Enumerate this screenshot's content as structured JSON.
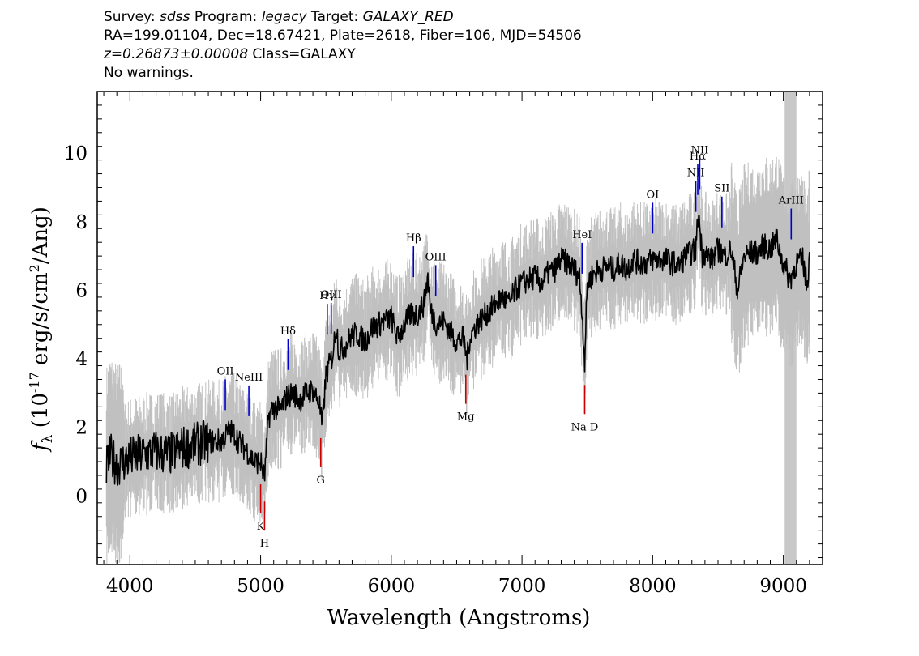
{
  "header": {
    "survey_label": "Survey:",
    "survey_value": "sdss",
    "program_label": "Program:",
    "program_value": "legacy",
    "target_label": "Target:",
    "target_value": "GALAXY_RED",
    "line2": "RA=199.01104, Dec=18.67421, Plate=2618, Fiber=106, MJD=54506",
    "redshift": "z=0.26873±0.00008",
    "class_text": "Class=GALAXY",
    "line4": "No warnings."
  },
  "chart_data": {
    "type": "line",
    "title": "",
    "xlabel": "Wavelength (Angstroms)",
    "ylabel": "f_λ (10^-17 erg/s/cm^2/Ang)",
    "xlim": [
      3750,
      9300
    ],
    "ylim": [
      -2,
      11.8
    ],
    "xticks": [
      4000,
      5000,
      6000,
      7000,
      8000,
      9000
    ],
    "yticks": [
      0,
      2,
      4,
      6,
      8,
      10
    ],
    "masked_band": [
      9010,
      9100
    ],
    "series": [
      {
        "color": "#000000",
        "x": [
          3820,
          3850,
          3900,
          3950,
          4000,
          4100,
          4200,
          4300,
          4400,
          4500,
          4600,
          4700,
          4760,
          4800,
          4850,
          4900,
          4950,
          5000,
          5030,
          5060,
          5100,
          5150,
          5200,
          5250,
          5300,
          5350,
          5400,
          5450,
          5470,
          5500,
          5550,
          5580,
          5600,
          5650,
          5700,
          5750,
          5800,
          5850,
          5900,
          5950,
          6000,
          6050,
          6100,
          6150,
          6200,
          6250,
          6280,
          6300,
          6350,
          6400,
          6450,
          6500,
          6550,
          6580,
          6600,
          6650,
          6700,
          6750,
          6800,
          6850,
          6900,
          6950,
          7000,
          7050,
          7100,
          7150,
          7200,
          7250,
          7300,
          7350,
          7400,
          7440,
          7460,
          7480,
          7500,
          7550,
          7600,
          7650,
          7700,
          7750,
          7800,
          7850,
          7900,
          7950,
          8000,
          8050,
          8100,
          8150,
          8200,
          8250,
          8300,
          8330,
          8350,
          8380,
          8400,
          8450,
          8500,
          8550,
          8600,
          8650,
          8700,
          8750,
          8800,
          8850,
          8900,
          8950,
          8980,
          9050,
          9100,
          9150,
          9180,
          9200
        ],
        "values": [
          0.8,
          1.2,
          0.9,
          1.0,
          1.1,
          1.2,
          1.3,
          1.2,
          1.4,
          1.5,
          1.6,
          1.6,
          1.9,
          1.8,
          1.5,
          1.3,
          1.0,
          1.0,
          0.5,
          2.3,
          2.6,
          2.5,
          2.9,
          3.0,
          2.8,
          3.0,
          3.1,
          2.7,
          2.0,
          3.5,
          4.1,
          5.0,
          4.2,
          4.4,
          4.7,
          4.7,
          4.5,
          4.9,
          5.0,
          5.1,
          5.2,
          4.6,
          5.0,
          5.3,
          5.3,
          5.6,
          6.4,
          5.4,
          5.0,
          5.1,
          4.8,
          4.5,
          4.6,
          4.0,
          4.6,
          5.0,
          5.2,
          5.4,
          5.6,
          5.8,
          5.6,
          6.0,
          6.2,
          6.3,
          6.4,
          6.2,
          6.5,
          6.6,
          6.9,
          6.8,
          6.6,
          6.4,
          5.4,
          3.9,
          6.2,
          6.5,
          6.6,
          6.7,
          6.6,
          6.8,
          6.6,
          6.9,
          6.8,
          6.8,
          6.9,
          6.9,
          6.9,
          6.8,
          6.7,
          7.0,
          7.1,
          7.2,
          8.3,
          7.0,
          7.1,
          6.9,
          7.2,
          7.0,
          7.2,
          6.0,
          7.0,
          7.1,
          7.1,
          7.3,
          7.2,
          7.5,
          7.0,
          6.3,
          6.8,
          6.9,
          6.1,
          7.0
        ]
      }
    ],
    "emission_lines": [
      {
        "label": "OII",
        "x": 4730,
        "color": "#0000cc"
      },
      {
        "label": "NeIII",
        "x": 4910,
        "color": "#0000cc"
      },
      {
        "label": "Hδ",
        "x": 5210,
        "color": "#0000cc"
      },
      {
        "label": "Hγ",
        "x": 5510,
        "color": "#0000cc"
      },
      {
        "label": "OIII",
        "x": 5540,
        "color": "#0000cc"
      },
      {
        "label": "Hβ",
        "x": 6170,
        "color": "#0000cc"
      },
      {
        "label": "OIII",
        "x": 6340,
        "color": "#0000cc"
      },
      {
        "label": "HeI",
        "x": 7460,
        "color": "#0000cc"
      },
      {
        "label": "OI",
        "x": 8000,
        "color": "#0000cc"
      },
      {
        "label": "NII",
        "x": 8330,
        "color": "#0000cc"
      },
      {
        "label": "Hα",
        "x": 8345,
        "color": "#0000cc"
      },
      {
        "label": "NII",
        "x": 8360,
        "color": "#0000cc"
      },
      {
        "label": "SII",
        "x": 8530,
        "color": "#0000cc"
      },
      {
        "label": "ArIII",
        "x": 9060,
        "color": "#0000cc"
      }
    ],
    "absorption_lines": [
      {
        "label": "K",
        "x": 5000,
        "color": "#cc0000"
      },
      {
        "label": "H",
        "x": 5030,
        "color": "#cc0000"
      },
      {
        "label": "G",
        "x": 5460,
        "color": "#cc0000"
      },
      {
        "label": "Mg",
        "x": 6570,
        "color": "#cc0000"
      },
      {
        "label": "Na D",
        "x": 7480,
        "color": "#cc0000"
      }
    ],
    "colors": {
      "spectrum": "#000000",
      "noise": "#c0c0c0",
      "emission": "#0000cc",
      "absorption": "#cc0000",
      "mask": "#c8c8c8"
    }
  }
}
